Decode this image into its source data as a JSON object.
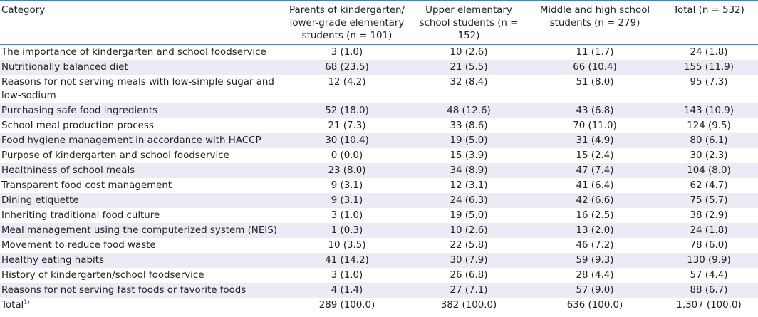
{
  "table": {
    "headers": {
      "category": "Category",
      "kinder": "Parents of kindergarten/ lower-grade elementary students (n = 101)",
      "upper": "Upper elementary school students (n = 152)",
      "middle": "Middle and high school students (n = 279)",
      "total": "Total (n = 532)"
    },
    "rows": [
      {
        "category": "The importance of kindergarten and school foodservice",
        "kinder": "3 (1.0)",
        "upper": "10 (2.6)",
        "middle": "11 (1.7)",
        "total": "24 (1.8)"
      },
      {
        "category": "Nutritionally balanced diet",
        "kinder": "68 (23.5)",
        "upper": "21 (5.5)",
        "middle": "66 (10.4)",
        "total": "155 (11.9)"
      },
      {
        "category": "Reasons for not serving meals with low-simple sugar and low-sodium",
        "kinder": "12 (4.2)",
        "upper": "32 (8.4)",
        "middle": "51 (8.0)",
        "total": "95 (7.3)"
      },
      {
        "category": "Purchasing safe food ingredients",
        "kinder": "52 (18.0)",
        "upper": "48 (12.6)",
        "middle": "43 (6.8)",
        "total": "143 (10.9)"
      },
      {
        "category": "School meal production process",
        "kinder": "21 (7.3)",
        "upper": "33 (8.6)",
        "middle": "70 (11.0)",
        "total": "124 (9.5)"
      },
      {
        "category": "Food hygiene management in accordance with HACCP",
        "kinder": "30 (10.4)",
        "upper": "19 (5.0)",
        "middle": "31 (4.9)",
        "total": "80 (6.1)"
      },
      {
        "category": "Purpose of kindergarten and school foodservice",
        "kinder": "0 (0.0)",
        "upper": "15 (3.9)",
        "middle": "15 (2.4)",
        "total": "30 (2.3)"
      },
      {
        "category": "Healthiness of school meals",
        "kinder": "23 (8.0)",
        "upper": "34 (8.9)",
        "middle": "47 (7.4)",
        "total": "104 (8.0)"
      },
      {
        "category": "Transparent food cost management",
        "kinder": "9 (3.1)",
        "upper": "12 (3.1)",
        "middle": "41 (6.4)",
        "total": "62 (4.7)"
      },
      {
        "category": "Dining etiquette",
        "kinder": "9 (3.1)",
        "upper": "24 (6.3)",
        "middle": "42 (6.6)",
        "total": "75 (5.7)"
      },
      {
        "category": "Inheriting traditional food culture",
        "kinder": "3 (1.0)",
        "upper": "19 (5.0)",
        "middle": "16 (2.5)",
        "total": "38 (2.9)"
      },
      {
        "category": "Meal management using the computerized system (NEIS)",
        "kinder": "1 (0.3)",
        "upper": "10 (2.6)",
        "middle": "13 (2.0)",
        "total": "24 (1.8)"
      },
      {
        "category": "Movement to reduce food waste",
        "kinder": "10 (3.5)",
        "upper": "22 (5.8)",
        "middle": "46 (7.2)",
        "total": "78 (6.0)"
      },
      {
        "category": "Healthy eating habits",
        "kinder": "41 (14.2)",
        "upper": "30 (7.9)",
        "middle": "59 (9.3)",
        "total": "130 (9.9)"
      },
      {
        "category": "History of kindergarten/school foodservice",
        "kinder": "3 (1.0)",
        "upper": "26 (6.8)",
        "middle": "28 (4.4)",
        "total": "57 (4.4)"
      },
      {
        "category": "Reasons for not serving fast foods or favorite foods",
        "kinder": "4 (1.4)",
        "upper": "27 (7.1)",
        "middle": "57 (9.0)",
        "total": "88 (6.7)"
      }
    ],
    "total_row": {
      "category": "Total",
      "footnote_mark": "1)",
      "kinder": "289 (100.0)",
      "upper": "382 (100.0)",
      "middle": "636 (100.0)",
      "total": "1,307 (100.0)"
    }
  }
}
